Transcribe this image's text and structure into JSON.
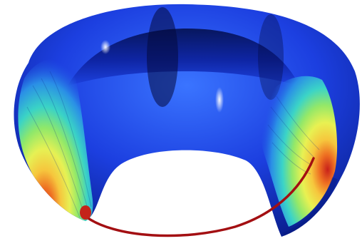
{
  "scene": {
    "subject": "torus",
    "colors": {
      "background": "#ffffff",
      "torus_deep": "#061a7a",
      "torus_mid": "#1f3ee6",
      "torus_light": "#4a86ff",
      "band_cyan": "#38d7d0",
      "band_green": "#86e65a",
      "band_yellow": "#f7e445",
      "band_orange": "#f08a2a",
      "band_red": "#d83a1f",
      "curve_red": "#a30f12"
    }
  }
}
